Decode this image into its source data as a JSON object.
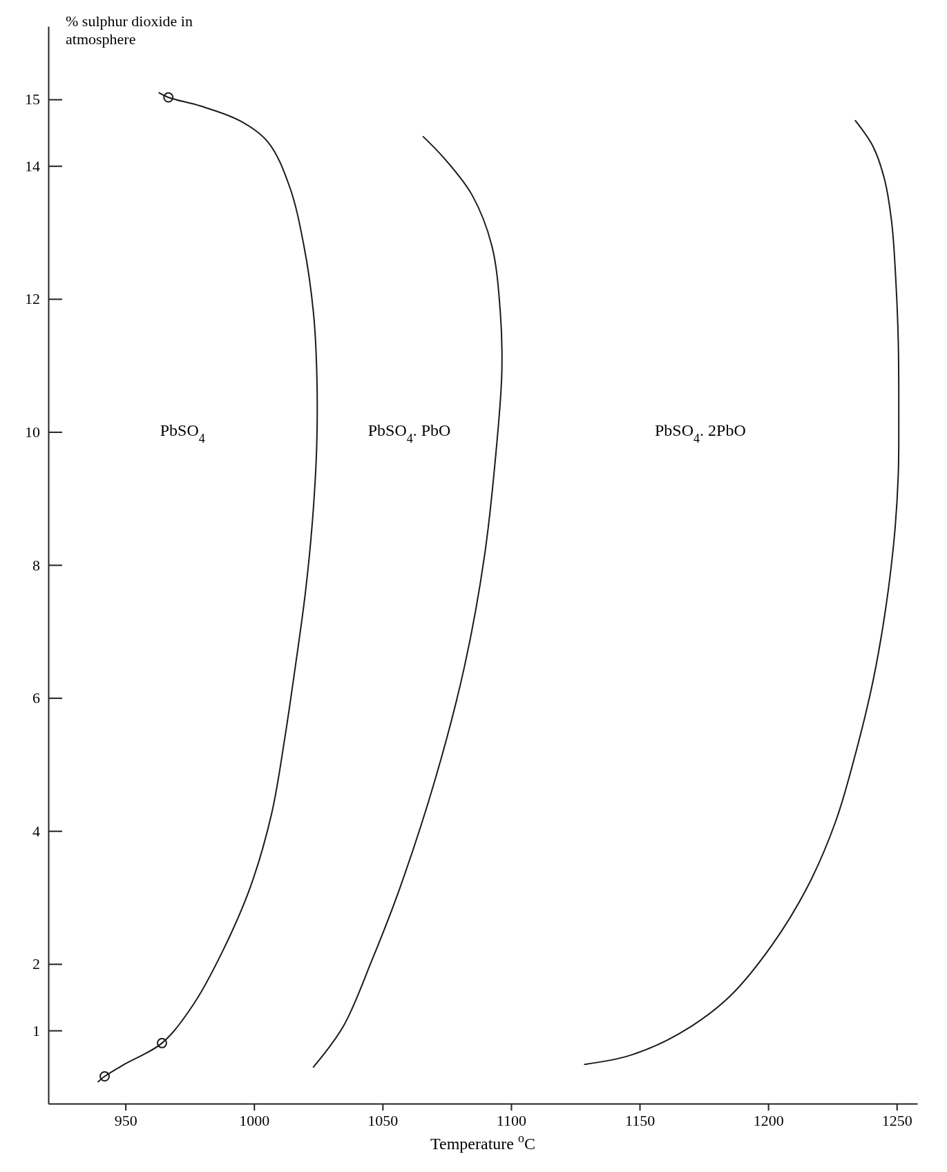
{
  "chart_data": {
    "type": "line",
    "xlabel": "Temperature $^{o}$C",
    "ylabel": "% sulphur dioxide in atmosphere",
    "xlim": [
      920,
      1258
    ],
    "ylim": [
      -0.1,
      16.1
    ],
    "xticks": [
      950,
      1000,
      1050,
      1100,
      1150,
      1200,
      1250
    ],
    "yticks": [
      1,
      2,
      4,
      6,
      8,
      10,
      12,
      14,
      15
    ],
    "grid": false,
    "marker": "none",
    "line_style": "solid",
    "series": [
      {
        "color": "#1a1a1a",
        "x": [
          939.4,
          941.9,
          950,
          964.2,
          976.4,
          987.5,
          998.6,
          1006.9,
          1011.9,
          1016.1,
          1020,
          1022.8,
          1024.4,
          1024.4,
          1023.1,
          1019.4,
          1013.9,
          1005.6,
          994.4,
          979.2,
          966.7,
          963.1
        ],
        "values": [
          0.23,
          0.31,
          0.5,
          0.81,
          1.39,
          2.17,
          3.16,
          4.27,
          5.38,
          6.48,
          7.59,
          8.7,
          9.81,
          10.91,
          11.8,
          12.8,
          13.68,
          14.35,
          14.68,
          14.9,
          15.03,
          15.1
        ]
      },
      {
        "color": "#1a1a1a",
        "x": [
          1023.1,
          1034.7,
          1045.8,
          1056.9,
          1070.8,
          1081.9,
          1089.7,
          1094.4,
          1096.4,
          1095.8,
          1092.5,
          1084.7,
          1073.6,
          1065.8
        ],
        "values": [
          0.45,
          1.06,
          2.05,
          3.16,
          4.82,
          6.48,
          8.15,
          9.81,
          10.91,
          11.8,
          12.8,
          13.57,
          14.13,
          14.44
        ]
      },
      {
        "color": "#1a1a1a",
        "x": [
          1128.6,
          1145.8,
          1165.3,
          1184.7,
          1201.4,
          1215.3,
          1226.4,
          1234.7,
          1240.8,
          1245.8,
          1249.2,
          1250.6,
          1250.8,
          1250.6,
          1249.7,
          1248.1,
          1245.3,
          1240.8,
          1233.9
        ],
        "values": [
          0.49,
          0.62,
          0.95,
          1.5,
          2.28,
          3.16,
          4.16,
          5.27,
          6.26,
          7.37,
          8.48,
          9.36,
          10.25,
          11.36,
          12.24,
          13.13,
          13.79,
          14.29,
          14.68
        ]
      },
      {
        "type": "scatter",
        "marker": "circle",
        "color": "#1a1a1a",
        "x": [
          941.9,
          964.2,
          966.7
        ],
        "values": [
          0.31,
          0.81,
          15.03
        ]
      }
    ],
    "annotations": [
      "PbSO$_{4}$",
      "PbSO$_{4}$. PbO",
      "PbSO$_{4}$. 2PbO"
    ]
  }
}
